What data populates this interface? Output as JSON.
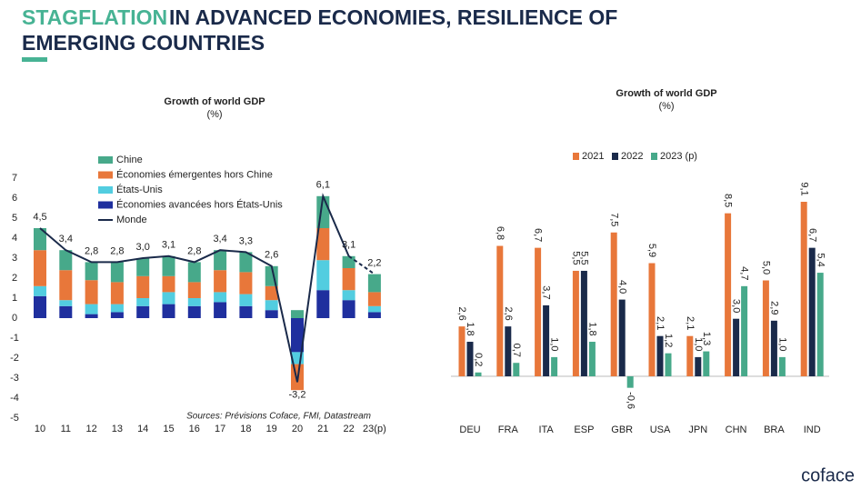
{
  "header": {
    "title_highlight": "STAGFLATION",
    "title_rest": "IN ADVANCED ECONOMIES, RESILIENCE OF",
    "title_line2": "EMERGING COUNTRIES"
  },
  "chart_data": [
    {
      "type": "stacked_bar",
      "title": "Growth of world GDP",
      "subtitle": "(%)",
      "source": "Sources: Prévisions Coface, FMI, Datastream",
      "categories": [
        "10",
        "11",
        "12",
        "13",
        "14",
        "15",
        "16",
        "17",
        "18",
        "19",
        "20",
        "21",
        "22",
        "23(p)"
      ],
      "ylim": [
        -5,
        7
      ],
      "yticks": [
        -5,
        -4,
        -3,
        -2,
        -1,
        0,
        1,
        2,
        3,
        4,
        5,
        6,
        7
      ],
      "series": [
        {
          "name": "Chine",
          "color": "#47a98a",
          "values": [
            1.1,
            1.0,
            0.9,
            1.0,
            0.9,
            1.0,
            1.0,
            1.0,
            1.0,
            1.0,
            0.4,
            1.6,
            0.6,
            0.9
          ]
        },
        {
          "name": "Économies émergentes hors Chine",
          "color": "#e8773a",
          "values": [
            1.8,
            1.5,
            1.2,
            1.1,
            1.1,
            0.8,
            0.8,
            1.1,
            1.1,
            0.7,
            -1.3,
            1.6,
            1.1,
            0.7
          ]
        },
        {
          "name": "États-Unis",
          "color": "#52cde0",
          "values": [
            0.5,
            0.3,
            0.5,
            0.4,
            0.4,
            0.6,
            0.4,
            0.5,
            0.6,
            0.5,
            -0.6,
            1.5,
            0.5,
            0.3
          ]
        },
        {
          "name": "Économies avancées hors États-Unis",
          "color": "#1f2f9e",
          "values": [
            1.1,
            0.6,
            0.2,
            0.3,
            0.6,
            0.7,
            0.6,
            0.8,
            0.6,
            0.4,
            -1.7,
            1.4,
            0.9,
            0.3
          ]
        },
        {
          "name": "Monde",
          "type": "line",
          "color": "#1a2a4a",
          "values": [
            4.5,
            3.4,
            2.8,
            2.8,
            3.0,
            3.1,
            2.8,
            3.4,
            3.3,
            2.6,
            -3.2,
            6.1,
            3.1,
            2.2
          ],
          "value_labels": [
            "4,5",
            "3,4",
            "2,8",
            "2,8",
            "3,0",
            "3,1",
            "2,8",
            "3,4",
            "3,3",
            "2,6",
            "-3,2",
            "6,1",
            "3,1",
            "2,2"
          ]
        }
      ]
    },
    {
      "type": "grouped_bar",
      "title": "Growth of world GDP",
      "subtitle": "(%)",
      "categories": [
        "DEU",
        "FRA",
        "ITA",
        "ESP",
        "GBR",
        "USA",
        "JPN",
        "CHN",
        "BRA",
        "IND"
      ],
      "series": [
        {
          "name": "2021",
          "color": "#e8773a",
          "values": [
            2.6,
            6.8,
            6.7,
            5.5,
            7.5,
            5.9,
            2.1,
            8.5,
            5.0,
            9.1
          ],
          "value_labels": [
            "2,6",
            "6,8",
            "6,7",
            "5,5",
            "7,5",
            "5,9",
            "2,1",
            "8,5",
            "5,0",
            "9,1"
          ]
        },
        {
          "name": "2022",
          "color": "#1a2a4a",
          "values": [
            1.8,
            2.6,
            3.7,
            5.5,
            4.0,
            2.1,
            1.0,
            3.0,
            2.9,
            6.7
          ],
          "value_labels": [
            "1,8",
            "2,6",
            "3,7",
            "5,5",
            "4,0",
            "2,1",
            "1,0",
            "3,0",
            "2,9",
            "6,7"
          ]
        },
        {
          "name": "2023 (p)",
          "color": "#47a98a",
          "values": [
            0.2,
            0.7,
            1.0,
            1.8,
            -0.6,
            1.2,
            1.3,
            4.7,
            1.0,
            5.4
          ],
          "value_labels": [
            "0,2",
            "0,7",
            "1,0",
            "1,8",
            "-0,6",
            "1,2",
            "1,3",
            "4,7",
            "1,0",
            "5,4"
          ]
        }
      ]
    }
  ],
  "logo": "coface"
}
